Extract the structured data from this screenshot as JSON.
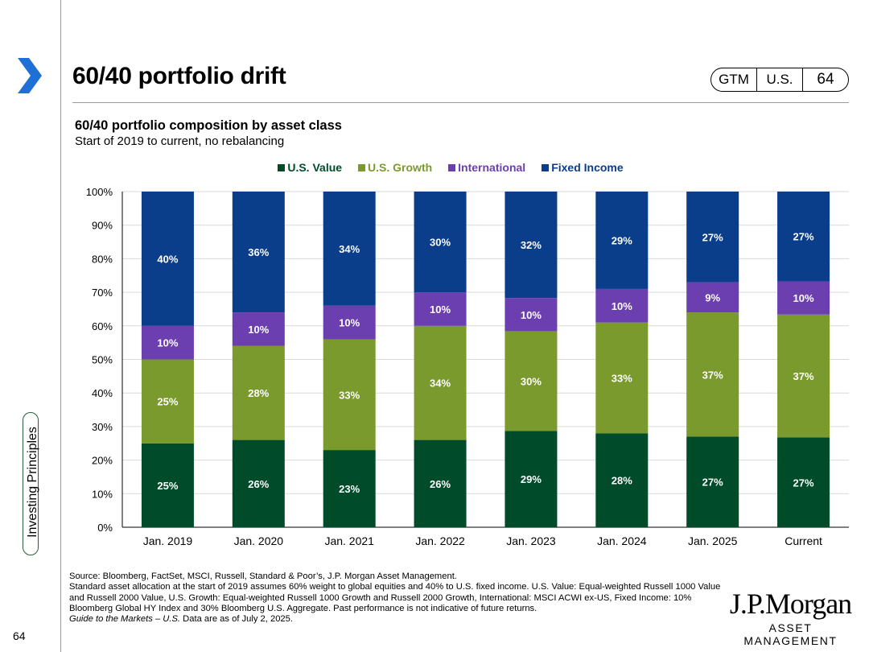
{
  "header": {
    "title": "60/40 portfolio drift",
    "pill": [
      "GTM",
      "U.S.",
      "64"
    ]
  },
  "sidebar": {
    "section_label": "Investing Principles",
    "page_number": "64"
  },
  "colors": {
    "us_value": "#004c2a",
    "us_growth": "#7a9a2e",
    "international": "#6c3fb0",
    "fixed_income": "#0a3d8a",
    "accent_arrow": "#1e6fd6"
  },
  "chart_data": {
    "type": "bar",
    "stacked": true,
    "title": "60/40 portfolio composition by asset class",
    "subtitle": "Start of 2019 to current, no rebalancing",
    "categories": [
      "Jan. 2019",
      "Jan. 2020",
      "Jan. 2021",
      "Jan. 2022",
      "Jan. 2023",
      "Jan. 2024",
      "Jan. 2025",
      "Current"
    ],
    "series": [
      {
        "name": "U.S. Value",
        "values": [
          25,
          26,
          23,
          26,
          29,
          28,
          27,
          27
        ],
        "labels": [
          "25%",
          "26%",
          "23%",
          "26%",
          "29%",
          "28%",
          "27%",
          "27%"
        ]
      },
      {
        "name": "U.S. Growth",
        "values": [
          25,
          28,
          33,
          34,
          30,
          33,
          37,
          37
        ],
        "labels": [
          "25%",
          "28%",
          "33%",
          "34%",
          "30%",
          "33%",
          "37%",
          "37%"
        ]
      },
      {
        "name": "International",
        "values": [
          10,
          10,
          10,
          10,
          10,
          10,
          9,
          10
        ],
        "labels": [
          "10%",
          "10%",
          "10%",
          "10%",
          "10%",
          "10%",
          "9%",
          "10%"
        ]
      },
      {
        "name": "Fixed Income",
        "values": [
          40,
          36,
          34,
          30,
          32,
          29,
          27,
          27
        ],
        "labels": [
          "40%",
          "36%",
          "34%",
          "30%",
          "32%",
          "29%",
          "27%",
          "27%"
        ]
      }
    ],
    "yticks": [
      "0%",
      "10%",
      "20%",
      "30%",
      "40%",
      "50%",
      "60%",
      "70%",
      "80%",
      "90%",
      "100%"
    ],
    "ylim": [
      0,
      100
    ],
    "grid": true,
    "legend_position": "top-center"
  },
  "footnote": {
    "line1": "Source: Bloomberg, FactSet, MSCI, Russell, Standard & Poor’s, J.P. Morgan Asset Management.",
    "line2": "Standard asset allocation at the start of 2019 assumes 60% weight to global equities and 40% to U.S. fixed income. U.S. Value: Equal-weighted Russell 1000 Value and Russell 2000 Value, U.S. Growth: Equal-weighted Russell 1000 Growth and Russell 2000 Growth, International: MSCI ACWI ex-US, Fixed Income: 10% Bloomberg Global HY Index and 30% Bloomberg U.S. Aggregate. Past performance is not indicative of future returns.",
    "italic": "Guide to the Markets – U.S.",
    "line3_rest": " Data are as of July 2, 2025."
  },
  "logo": {
    "brand": "J.P.Morgan",
    "sub": "ASSET MANAGEMENT"
  }
}
